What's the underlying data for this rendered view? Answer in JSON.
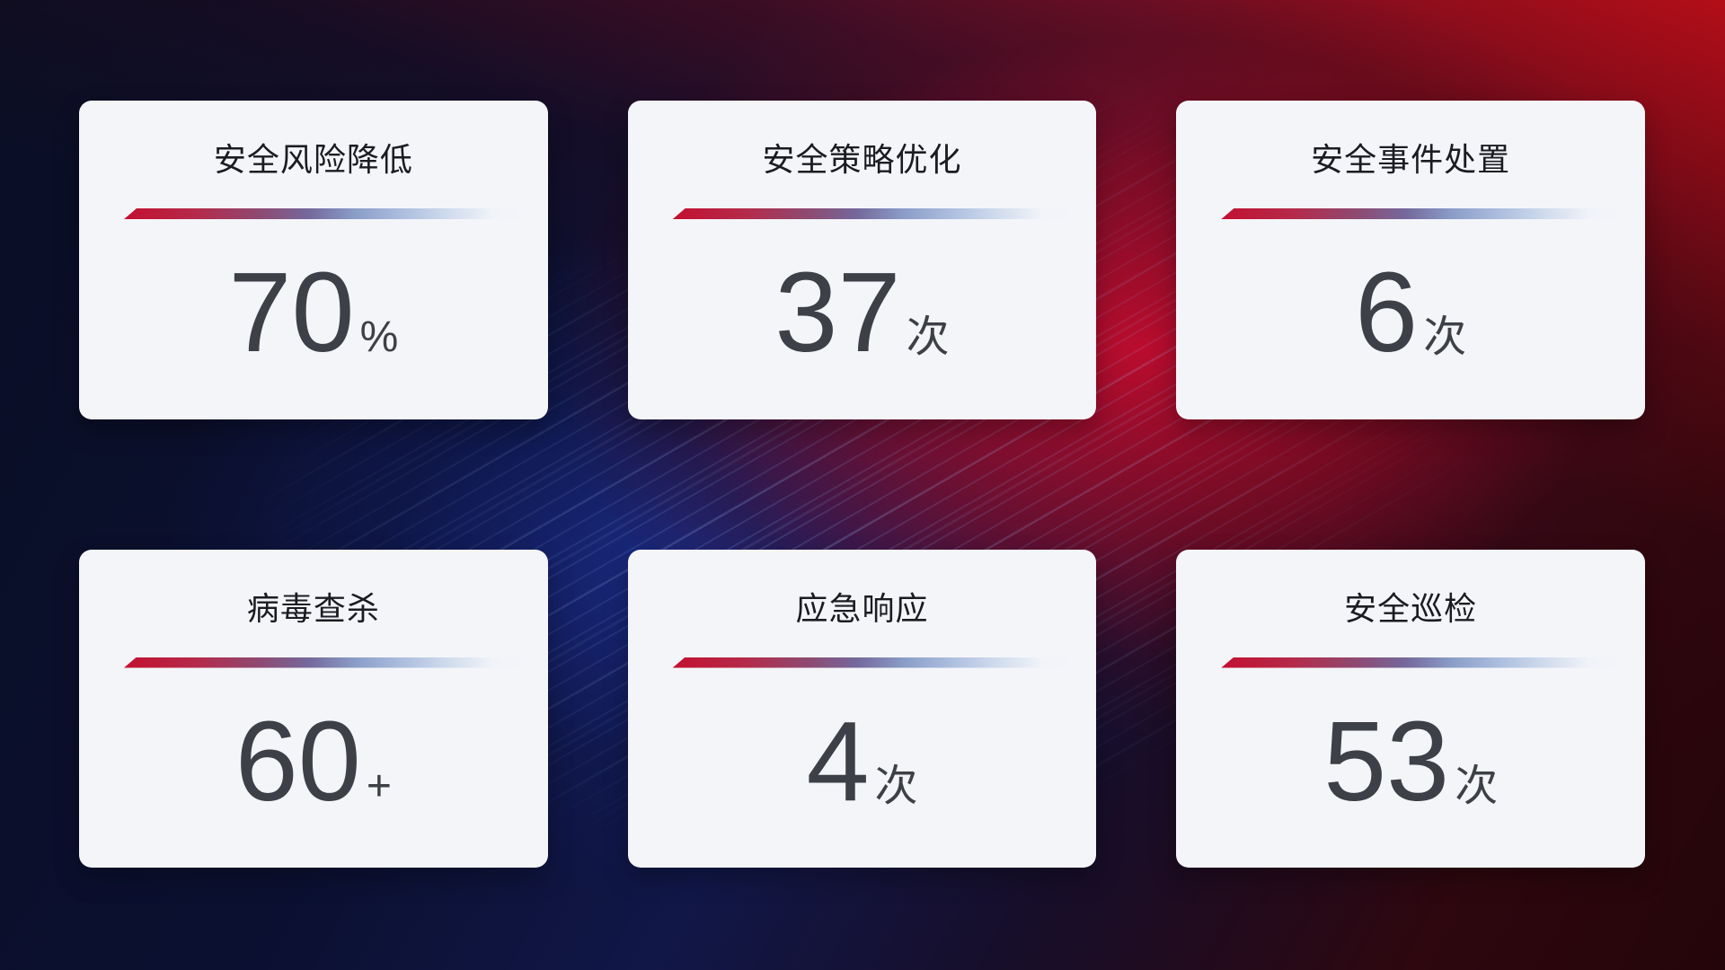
{
  "cards": [
    {
      "title": "安全风险降低",
      "value": "70",
      "unit": "%"
    },
    {
      "title": "安全策略优化",
      "value": "37",
      "unit": "次"
    },
    {
      "title": "安全事件处置",
      "value": "6",
      "unit": "次"
    },
    {
      "title": "病毒查杀",
      "value": "60",
      "unit": "+"
    },
    {
      "title": "应急响应",
      "value": "4",
      "unit": "次"
    },
    {
      "title": "安全巡检",
      "value": "53",
      "unit": "次"
    }
  ],
  "colors": {
    "card_background": "#f4f5f9",
    "title_text": "#1b1c22",
    "value_text": "#3d4046",
    "divider_red": "#c31030",
    "divider_blue": "#aebfdf",
    "background_navy": "#0b1031",
    "background_blue_glow": "#1b2d8c",
    "background_red": "#ba0e18",
    "background_maroon": "#2e070f"
  }
}
